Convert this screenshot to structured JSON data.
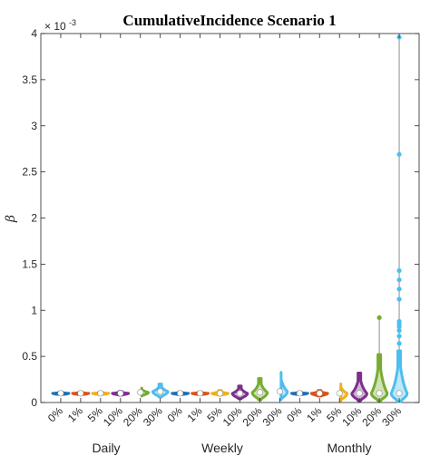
{
  "chart_data": {
    "type": "violin",
    "title": "CumulativeIncidence Scenario 1",
    "ylabel": "β",
    "y_exponent_label": "× 10",
    "y_exponent_power": "-3",
    "ylim": [
      0,
      4
    ],
    "yticks": [
      0,
      0.5,
      1,
      1.5,
      2,
      2.5,
      3,
      3.5,
      4
    ],
    "ytick_labels": [
      "0",
      "0.5",
      "1",
      "1.5",
      "2",
      "2.5",
      "3",
      "3.5",
      "4"
    ],
    "grid": false,
    "group_labels": [
      "Daily",
      "Weekly",
      "Monthly"
    ],
    "categories": [
      "0%",
      "1%",
      "5%",
      "10%",
      "20%",
      "30%",
      "0%",
      "1%",
      "5%",
      "10%",
      "20%",
      "30%",
      "0%",
      "1%",
      "5%",
      "10%",
      "20%",
      "30%"
    ],
    "colors": [
      "#1f6fb4",
      "#d95319",
      "#edb120",
      "#7e2f8e",
      "#77ac30",
      "#4dbeee"
    ],
    "series": [
      {
        "group": "Daily",
        "category": "0%",
        "median": 0.1,
        "bulk_min": 0.085,
        "bulk_max": 0.115,
        "width": 0.9,
        "outliers": []
      },
      {
        "group": "Daily",
        "category": "1%",
        "median": 0.1,
        "bulk_min": 0.085,
        "bulk_max": 0.115,
        "width": 0.9,
        "outliers": []
      },
      {
        "group": "Daily",
        "category": "5%",
        "median": 0.1,
        "bulk_min": 0.085,
        "bulk_max": 0.115,
        "width": 0.9,
        "outliers": []
      },
      {
        "group": "Daily",
        "category": "10%",
        "median": 0.1,
        "bulk_min": 0.08,
        "bulk_max": 0.12,
        "width": 0.9,
        "outliers": []
      },
      {
        "group": "Daily",
        "category": "20%",
        "median": 0.11,
        "bulk_min": 0.07,
        "bulk_max": 0.16,
        "width": 0.9,
        "outliers": []
      },
      {
        "group": "Daily",
        "category": "30%",
        "median": 0.12,
        "bulk_min": 0.06,
        "bulk_max": 0.2,
        "width": 0.85,
        "outliers": []
      },
      {
        "group": "Weekly",
        "category": "0%",
        "median": 0.1,
        "bulk_min": 0.085,
        "bulk_max": 0.115,
        "width": 0.9,
        "outliers": []
      },
      {
        "group": "Weekly",
        "category": "1%",
        "median": 0.1,
        "bulk_min": 0.085,
        "bulk_max": 0.115,
        "width": 0.9,
        "outliers": []
      },
      {
        "group": "Weekly",
        "category": "5%",
        "median": 0.1,
        "bulk_min": 0.08,
        "bulk_max": 0.13,
        "width": 0.9,
        "outliers": []
      },
      {
        "group": "Weekly",
        "category": "10%",
        "median": 0.1,
        "bulk_min": 0.04,
        "bulk_max": 0.18,
        "width": 0.85,
        "outliers": []
      },
      {
        "group": "Weekly",
        "category": "20%",
        "median": 0.11,
        "bulk_min": 0.03,
        "bulk_max": 0.26,
        "width": 0.85,
        "outliers": []
      },
      {
        "group": "Weekly",
        "category": "30%",
        "median": 0.12,
        "bulk_min": 0.03,
        "bulk_max": 0.34,
        "width": 0.85,
        "outliers": []
      },
      {
        "group": "Monthly",
        "category": "0%",
        "median": 0.1,
        "bulk_min": 0.085,
        "bulk_max": 0.115,
        "width": 0.9,
        "outliers": []
      },
      {
        "group": "Monthly",
        "category": "1%",
        "median": 0.1,
        "bulk_min": 0.07,
        "bulk_max": 0.13,
        "width": 0.9,
        "outliers": []
      },
      {
        "group": "Monthly",
        "category": "5%",
        "median": 0.1,
        "bulk_min": 0.02,
        "bulk_max": 0.21,
        "width": 0.85,
        "outliers": []
      },
      {
        "group": "Monthly",
        "category": "10%",
        "median": 0.1,
        "bulk_min": 0.02,
        "bulk_max": 0.32,
        "width": 0.85,
        "outliers": []
      },
      {
        "group": "Monthly",
        "category": "20%",
        "median": 0.1,
        "bulk_min": 0.02,
        "bulk_max": 0.52,
        "width": 0.9,
        "outliers": [
          0.92
        ]
      },
      {
        "group": "Monthly",
        "category": "30%",
        "median": 0.1,
        "bulk_min": 0.01,
        "bulk_max": 0.56,
        "width": 0.9,
        "outliers": [
          0.64,
          0.72,
          0.78,
          0.82,
          0.85,
          0.88,
          1.12,
          1.23,
          1.33,
          1.43,
          2.69,
          3.96
        ]
      }
    ]
  }
}
